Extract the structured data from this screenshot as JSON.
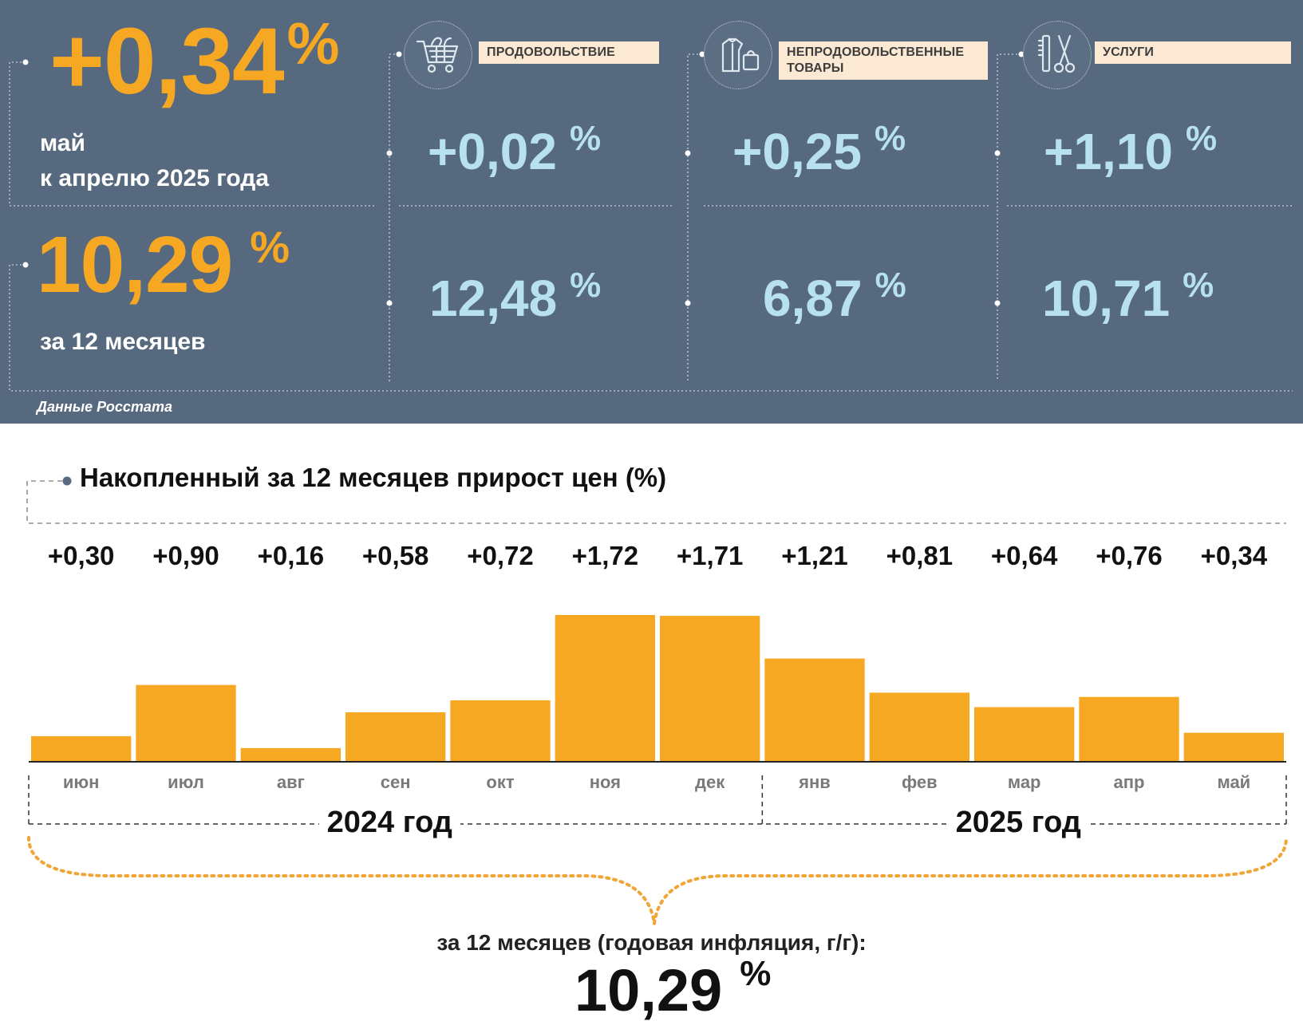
{
  "summary": {
    "monthly_value": "+0,34",
    "monthly_unit": "%",
    "monthly_line1": "май",
    "monthly_line2": "к апрелю 2025 года",
    "annual_value": "10,29",
    "annual_unit": "%",
    "annual_label": "за 12 месяцев",
    "source": "Данные Росстата"
  },
  "categories": [
    {
      "label": "ПРОДОВОЛЬСТВИЕ",
      "icon": "shopping-cart-icon",
      "monthly": "+0,02",
      "annual": "12,48",
      "unit": "%"
    },
    {
      "label": "НЕПРОДОВОЛЬСТВЕННЫЕ ТОВАРЫ",
      "icon": "clothing-bag-icon",
      "monthly": "+0,25",
      "annual": "6,87",
      "unit": "%"
    },
    {
      "label": "УСЛУГИ",
      "icon": "comb-scissors-icon",
      "monthly": "+1,10",
      "annual": "10,71",
      "unit": "%"
    }
  ],
  "chart_data": {
    "type": "bar",
    "title": "Накопленный за 12 месяцев прирост цен (%)",
    "categories": [
      "июн",
      "июл",
      "авг",
      "сен",
      "окт",
      "ноя",
      "дек",
      "янв",
      "фев",
      "мар",
      "апр",
      "май"
    ],
    "values": [
      0.3,
      0.9,
      0.16,
      0.58,
      0.72,
      1.72,
      1.71,
      1.21,
      0.81,
      0.64,
      0.76,
      0.34
    ],
    "value_labels": [
      "+0,30",
      "+0,90",
      "+0,16",
      "+0,58",
      "+0,72",
      "+1,72",
      "+1,71",
      "+1,21",
      "+0,81",
      "+0,64",
      "+0,76",
      "+0,34"
    ],
    "year_groups": [
      {
        "label": "2024 год",
        "months": 7
      },
      {
        "label": "2025 год",
        "months": 5
      }
    ],
    "ylim": [
      0,
      1.72
    ],
    "grid": false,
    "legend": "none"
  },
  "footer": {
    "caption": "за 12 месяцев (годовая инфляция, г/г):",
    "total_value": "10,29",
    "total_unit": "%"
  },
  "colors": {
    "panel_bg": "#56697f",
    "accent_orange": "#f7a823",
    "value_light_blue": "#b7e0f1",
    "label_bg": "#fbe9d4",
    "bar_color": "#f7a823",
    "brace_color": "#f0a535"
  }
}
